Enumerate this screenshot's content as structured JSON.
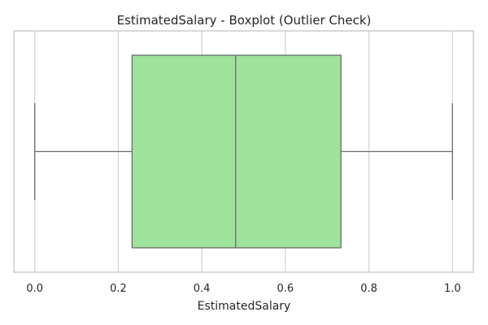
{
  "chart_data": {
    "type": "boxplot",
    "title": "EstimatedSalary - Boxplot (Outlier Check)",
    "xlabel": "EstimatedSalary",
    "ylabel": "",
    "xlim": [
      -0.05,
      1.05
    ],
    "xticks": [
      0.0,
      0.2,
      0.4,
      0.6,
      0.8,
      1.0
    ],
    "xtick_labels": [
      "0.0",
      "0.2",
      "0.4",
      "0.6",
      "0.8",
      "1.0"
    ],
    "grid": true,
    "orientation": "horizontal",
    "box": {
      "whisker_low": 0.0,
      "q1": 0.233,
      "median": 0.481,
      "q3": 0.733,
      "whisker_high": 1.0,
      "outliers": []
    },
    "colors": {
      "box_fill": "#9de39b",
      "line": "#6b6b6b",
      "grid": "#d3d3d3",
      "frame": "#c8c8c8",
      "text": "#262626"
    }
  }
}
